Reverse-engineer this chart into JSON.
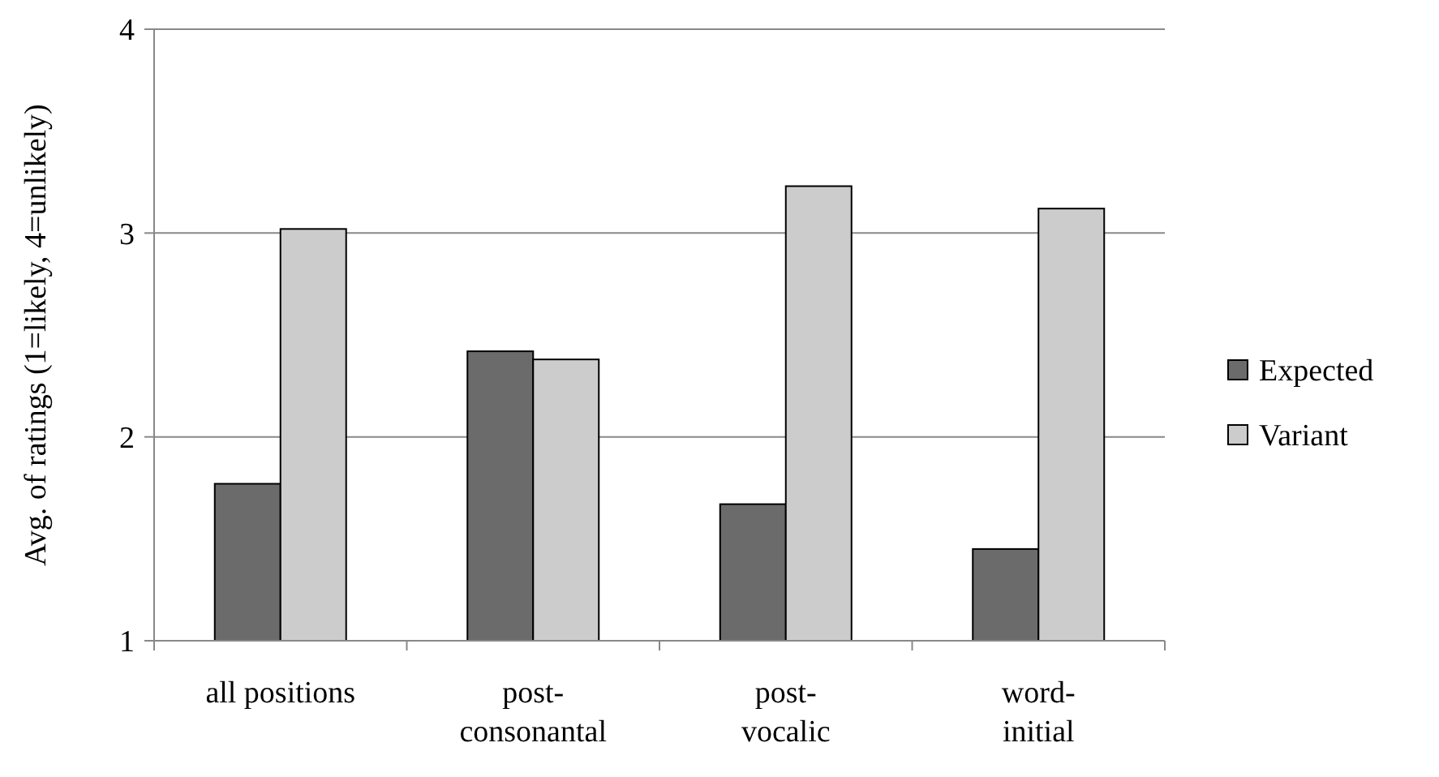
{
  "chart_data": {
    "type": "bar",
    "ylabel": "Avg. of ratings (1=likely, 4=unlikely)",
    "categories": [
      "all positions",
      "post-\nconsonantal",
      "post-\nvocalic",
      "word-\ninitial"
    ],
    "series": [
      {
        "name": "Expected",
        "color": "#6b6b6b",
        "values": [
          1.77,
          2.42,
          1.67,
          1.45
        ]
      },
      {
        "name": "Variant",
        "color": "#cccccc",
        "values": [
          3.02,
          2.38,
          3.23,
          3.12
        ]
      }
    ],
    "ylim": [
      1,
      4
    ],
    "yticks": [
      1,
      2,
      3,
      4
    ],
    "grid": "y",
    "legend": "right"
  }
}
